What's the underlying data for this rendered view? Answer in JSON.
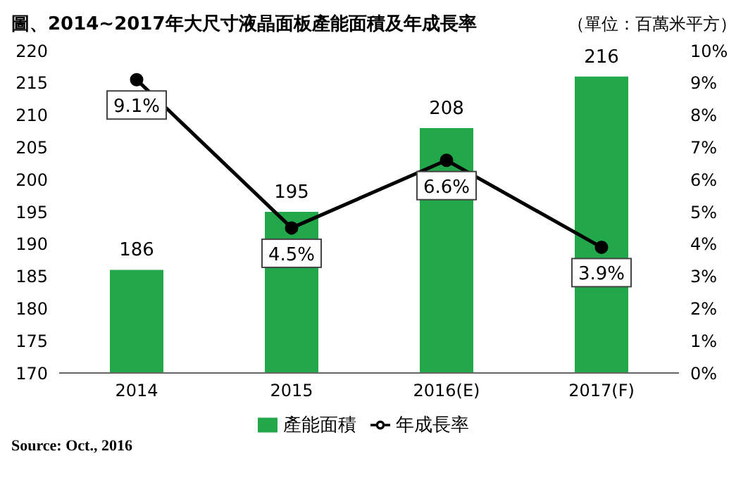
{
  "chart_data": {
    "type": "bar",
    "title": "圖、2014~2017年大尺寸液晶面板產能面積及年成長率",
    "subtitle": "（單位：百萬米平方）",
    "categories": [
      "2014",
      "2015",
      "2016(E)",
      "2017(F)"
    ],
    "series": [
      {
        "name": "產能面積",
        "color": "#22a84a",
        "values": [
          186,
          195,
          208,
          216
        ]
      },
      {
        "name": "年成長率",
        "type": "line",
        "axis": "y2",
        "color": "#000000",
        "values": [
          9.1,
          4.5,
          6.6,
          3.9
        ],
        "value_labels": [
          "9.1%",
          "4.5%",
          "6.6%",
          "3.9%"
        ]
      }
    ],
    "ylim": [
      170,
      220
    ],
    "yticks": [
      170,
      175,
      180,
      185,
      190,
      195,
      200,
      205,
      210,
      215,
      220
    ],
    "y2lim": [
      0,
      10
    ],
    "y2ticks": [
      {
        "value": 0,
        "label": "0%"
      },
      {
        "value": 1,
        "label": "1%"
      },
      {
        "value": 2,
        "label": "2%"
      },
      {
        "value": 3,
        "label": "3%"
      },
      {
        "value": 4,
        "label": "4%"
      },
      {
        "value": 5,
        "label": "5%"
      },
      {
        "value": 6,
        "label": "6%"
      },
      {
        "value": 7,
        "label": "7%"
      },
      {
        "value": 8,
        "label": "8%"
      },
      {
        "value": 9,
        "label": "9%"
      },
      {
        "value": 10,
        "label": "10%"
      }
    ],
    "data_labels": true,
    "grid": false,
    "legend": "bottom",
    "marker": "circle",
    "line_style": "solid",
    "annotations": [
      "Source: Oct., 2016"
    ]
  }
}
